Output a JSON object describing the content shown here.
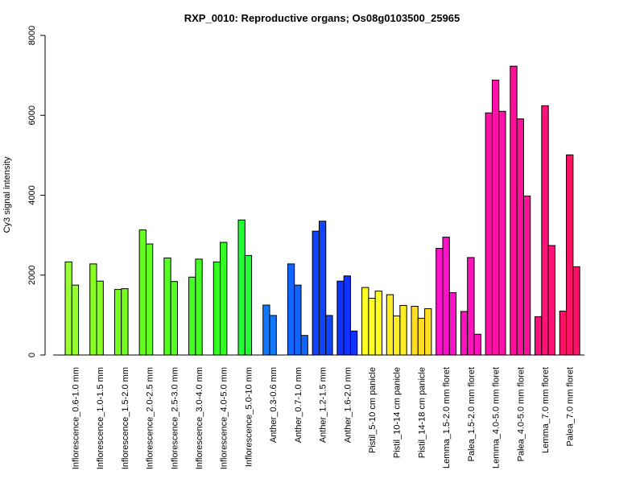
{
  "chart_data": {
    "type": "bar",
    "title": "RXP_0010: Reproductive organs; Os08g0103500_25965",
    "xlabel": "",
    "ylabel": "Cy3 signal intensity",
    "ylim": [
      0,
      8000
    ],
    "yticks": [
      0,
      2000,
      4000,
      6000,
      8000
    ],
    "grid": false,
    "groups": [
      {
        "label": "Inflorescence_0.6-1.0 mm",
        "values": [
          2330,
          1750
        ],
        "color": "#99ff33"
      },
      {
        "label": "Inflorescence_1.0-1.5 mm",
        "values": [
          2280,
          1850
        ],
        "color": "#88ff22"
      },
      {
        "label": "Inflorescence_1.5-2.0 mm",
        "values": [
          1640,
          1660
        ],
        "color": "#77ff22"
      },
      {
        "label": "Inflorescence_2.0-2.5 mm",
        "values": [
          3130,
          2780
        ],
        "color": "#66ff22"
      },
      {
        "label": "Inflorescence_2.5-3.0 mm",
        "values": [
          2430,
          1840
        ],
        "color": "#55ff22"
      },
      {
        "label": "Inflorescence_3.0-4.0 mm",
        "values": [
          1950,
          2400
        ],
        "color": "#44ff22"
      },
      {
        "label": "Inflorescence_4.0-5.0 mm",
        "values": [
          2330,
          2820
        ],
        "color": "#33ff22"
      },
      {
        "label": "Inflorescence_5.0-10 mm",
        "values": [
          3380,
          2490
        ],
        "color": "#22ff33"
      },
      {
        "label": "Anther_0.3-0.6 mm",
        "values": [
          1250,
          990
        ],
        "color": "#1177ff"
      },
      {
        "label": "Anther_0.7-1.0 mm",
        "values": [
          2280,
          1750,
          490
        ],
        "color": "#1166ff"
      },
      {
        "label": "Anther_1.2-1.5 mm",
        "values": [
          3100,
          3350,
          990
        ],
        "color": "#1144ff"
      },
      {
        "label": "Anther_1.6-2.0 mm",
        "values": [
          1850,
          1980,
          600
        ],
        "color": "#1133ff"
      },
      {
        "label": "Pistil_5-10 cm panicle",
        "values": [
          1690,
          1420,
          1600
        ],
        "color": "#ffff22"
      },
      {
        "label": "Pistil_10-14 cm panicle",
        "values": [
          1510,
          980,
          1240
        ],
        "color": "#ffee22"
      },
      {
        "label": "Pistil_14-18 cm panicle",
        "values": [
          1220,
          920,
          1160
        ],
        "color": "#ffdd22"
      },
      {
        "label": "Lemma_1.5-2.0 mm floret",
        "values": [
          2670,
          2950,
          1560
        ],
        "color": "#ff11cc"
      },
      {
        "label": "Palea_1.5-2.0 mm floret",
        "values": [
          1090,
          2440,
          520
        ],
        "color": "#ff11bb"
      },
      {
        "label": "Lemma_4.0-5.0 mm floret",
        "values": [
          6060,
          6880,
          6100
        ],
        "color": "#ff11aa"
      },
      {
        "label": "Palea_4.0-5.0 mm floret",
        "values": [
          7230,
          5910,
          3980
        ],
        "color": "#ff1199"
      },
      {
        "label": "Lemma_7.0 mm floret",
        "values": [
          960,
          6240,
          2740
        ],
        "color": "#ff1177"
      },
      {
        "label": "Palea_7.0 mm floret",
        "values": [
          1100,
          5010,
          2210
        ],
        "color": "#ff1166"
      }
    ]
  }
}
